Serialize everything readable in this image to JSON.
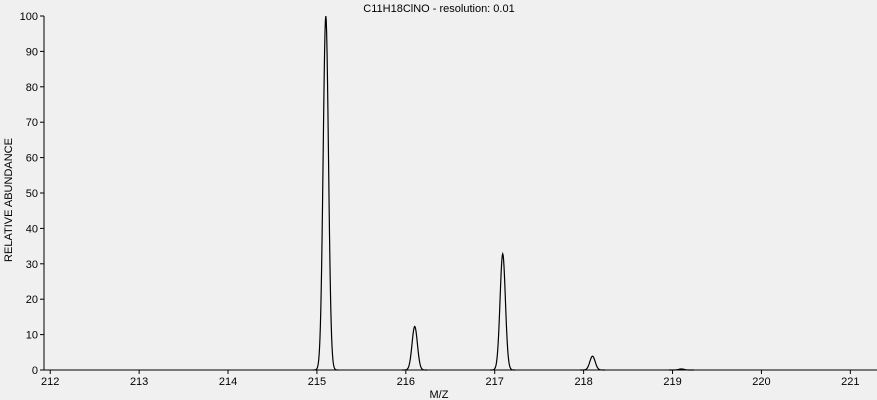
{
  "chart_data": {
    "type": "line",
    "title": "C11H18ClNO - resolution: 0.01",
    "xlabel": "M/Z",
    "ylabel": "RELATIVE ABUNDANCE",
    "xlim": [
      211.93,
      221.3
    ],
    "ylim": [
      0,
      100
    ],
    "x_ticks": [
      212,
      213,
      214,
      215,
      216,
      217,
      218,
      219,
      220,
      221
    ],
    "y_ticks": [
      0,
      10,
      20,
      30,
      40,
      50,
      60,
      70,
      80,
      90,
      100
    ],
    "baseline_range": [
      213.0,
      220.3
    ],
    "peaks": [
      {
        "x": 215.1,
        "y": 100
      },
      {
        "x": 216.1,
        "y": 12.3
      },
      {
        "x": 217.09,
        "y": 32.8
      },
      {
        "x": 218.1,
        "y": 3.9
      },
      {
        "x": 219.1,
        "y": 0.3
      }
    ],
    "grid": false,
    "colors": {
      "line": "#000000",
      "background": "#f0f0f0"
    }
  }
}
